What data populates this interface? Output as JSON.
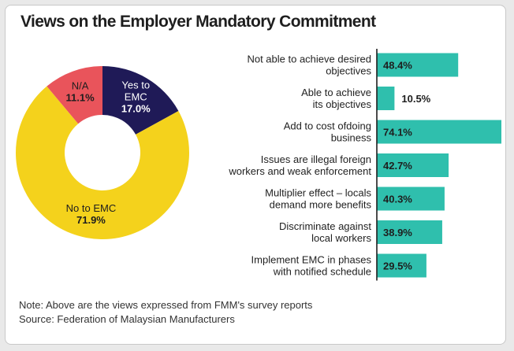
{
  "title": "Views on the Employer Mandatory Commitment",
  "note_line1": "Note: Above are the views expressed from FMM's survey reports",
  "note_line2": "Source: Federation of Malaysian Manufacturers",
  "colors": {
    "yes": "#1f1a57",
    "no": "#f4d21c",
    "na": "#e9545b",
    "bar": "#2fbfad"
  },
  "chart_data": [
    {
      "type": "pie",
      "variant": "donut",
      "slices": [
        {
          "label_lines": [
            "Yes to",
            "EMC"
          ],
          "value": 17.0,
          "value_label": "17.0%",
          "color_key": "yes"
        },
        {
          "label_lines": [
            "No to EMC"
          ],
          "value": 71.9,
          "value_label": "71.9%",
          "color_key": "no"
        },
        {
          "label_lines": [
            "N/A"
          ],
          "value": 11.1,
          "value_label": "11.1%",
          "color_key": "na"
        }
      ]
    },
    {
      "type": "bar",
      "orientation": "horizontal",
      "xlim": [
        0,
        74.1
      ],
      "categories": [
        [
          "Not able to achieve desired",
          "objectives"
        ],
        [
          "Able to achieve",
          "its objectives"
        ],
        [
          "Add to cost ofdoing",
          "business"
        ],
        [
          "Issues are illegal foreign",
          "workers and weak enforcement"
        ],
        [
          "Multiplier effect – locals",
          "demand more benefits"
        ],
        [
          "Discriminate against",
          "local workers"
        ],
        [
          "Implement EMC in phases",
          "with notified schedule"
        ]
      ],
      "values": [
        48.4,
        10.5,
        74.1,
        42.7,
        40.3,
        38.9,
        29.5
      ],
      "value_labels": [
        "48.4%",
        "10.5%",
        "74.1%",
        "42.7%",
        "40.3%",
        "38.9%",
        "29.5%"
      ]
    }
  ]
}
